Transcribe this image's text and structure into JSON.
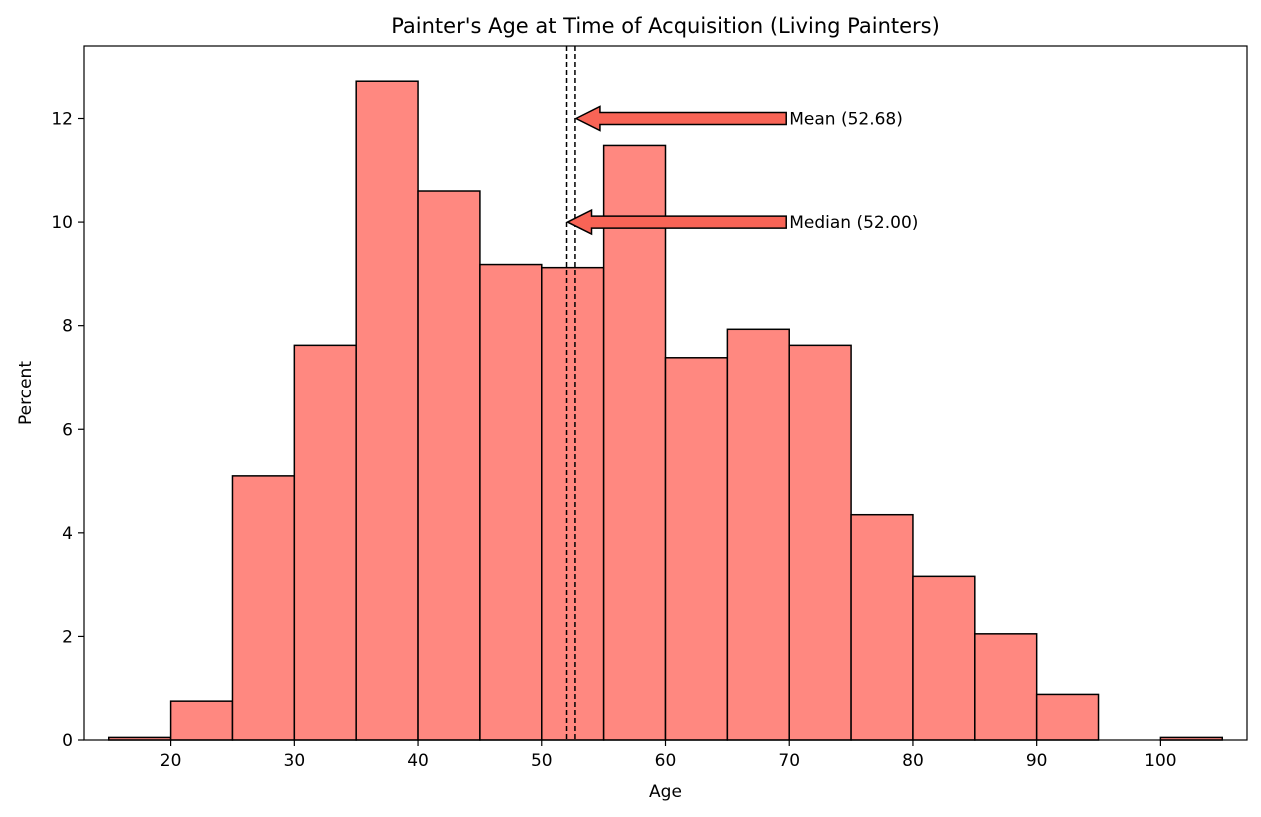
{
  "chart_data": {
    "type": "bar",
    "title": "Painter's Age at Time of Acquisition (Living Painters)",
    "xlabel": "Age",
    "ylabel": "Percent",
    "xlim": [
      13,
      107
    ],
    "ylim": [
      0,
      13.4
    ],
    "xticks": [
      20,
      30,
      40,
      50,
      60,
      70,
      80,
      90,
      100
    ],
    "yticks": [
      0,
      2,
      4,
      6,
      8,
      10,
      12
    ],
    "grid": false,
    "bar_color": "#ff8880",
    "edge_color": "#000000",
    "bins": [
      {
        "start": 15,
        "end": 20,
        "value": 0.05
      },
      {
        "start": 20,
        "end": 25,
        "value": 0.75
      },
      {
        "start": 25,
        "end": 30,
        "value": 5.1
      },
      {
        "start": 30,
        "end": 35,
        "value": 7.62
      },
      {
        "start": 35,
        "end": 40,
        "value": 12.72
      },
      {
        "start": 40,
        "end": 45,
        "value": 10.6
      },
      {
        "start": 45,
        "end": 50,
        "value": 9.18
      },
      {
        "start": 50,
        "end": 55,
        "value": 9.12
      },
      {
        "start": 55,
        "end": 60,
        "value": 11.48
      },
      {
        "start": 60,
        "end": 65,
        "value": 7.38
      },
      {
        "start": 65,
        "end": 70,
        "value": 7.93
      },
      {
        "start": 70,
        "end": 75,
        "value": 7.62
      },
      {
        "start": 75,
        "end": 80,
        "value": 4.35
      },
      {
        "start": 80,
        "end": 85,
        "value": 3.16
      },
      {
        "start": 85,
        "end": 90,
        "value": 2.05
      },
      {
        "start": 90,
        "end": 95,
        "value": 0.88
      },
      {
        "start": 95,
        "end": 100,
        "value": 0
      },
      {
        "start": 100,
        "end": 105,
        "value": 0.05
      }
    ],
    "reference_lines": [
      {
        "label": "Mean (52.68)",
        "x": 52.68,
        "arrow_y": 12,
        "text_x": 70,
        "style": "dashed"
      },
      {
        "label": "Median (52.00)",
        "x": 52.0,
        "arrow_y": 10,
        "text_x": 70,
        "style": "dashed"
      }
    ],
    "arrow_color": "#f86456"
  }
}
